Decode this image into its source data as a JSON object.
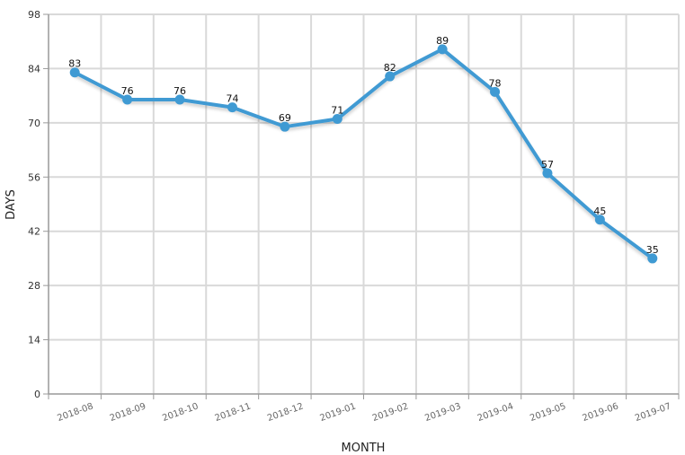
{
  "chart_data": {
    "type": "line",
    "title": "",
    "xlabel": "MONTH",
    "ylabel": "DAYS",
    "categories": [
      "2018-08",
      "2018-09",
      "2018-10",
      "2018-11",
      "2018-12",
      "2019-01",
      "2019-02",
      "2019-03",
      "2019-04",
      "2019-05",
      "2019-06",
      "2019-07"
    ],
    "series": [
      {
        "name": "",
        "values": [
          83,
          76,
          76,
          74,
          69,
          71,
          82,
          89,
          78,
          57,
          45,
          35
        ]
      }
    ],
    "ylim": [
      0,
      98
    ],
    "yticks": [
      0,
      14,
      28,
      42,
      56,
      70,
      84,
      98
    ],
    "grid": true,
    "legend": "none",
    "data_labels": true,
    "colors": {
      "line": "#3f9ad3",
      "point": "#3f9ad3",
      "grid": "#d9d9d9",
      "axis": "#999999"
    }
  }
}
